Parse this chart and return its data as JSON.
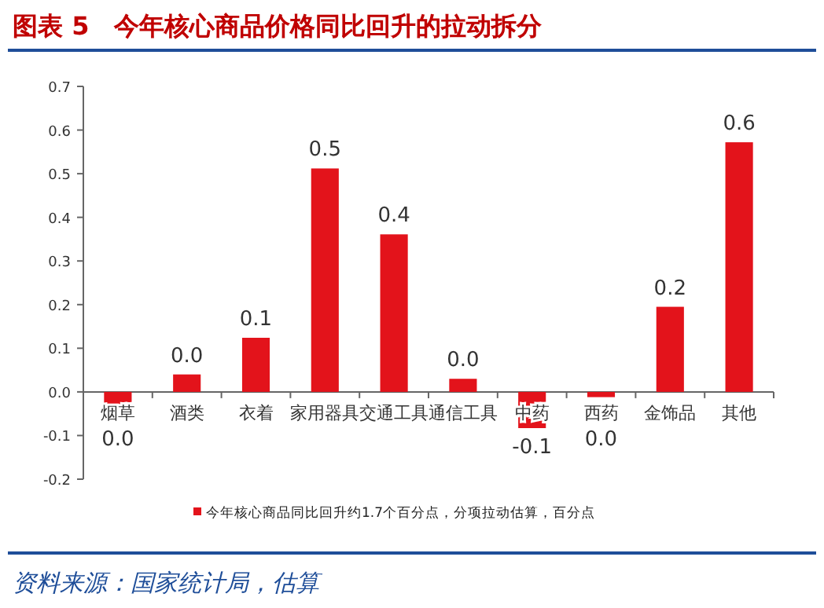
{
  "chart_data": {
    "type": "bar",
    "title": "图表 5　今年核心商品价格同比回升的拉动拆分",
    "categories": [
      "烟草",
      "酒类",
      "衣着",
      "家用器具",
      "交通工具",
      "通信工具",
      "中药",
      "西药",
      "金饰品",
      "其他"
    ],
    "series": [
      {
        "name": "今年核心商品同比回升约1.7个百分点，分项拉动估算，百分点",
        "color": "#e3131b",
        "values": [
          -0.029,
          0.04,
          0.124,
          0.512,
          0.361,
          0.03,
          -0.083,
          -0.012,
          0.195,
          0.572
        ],
        "value_labels": [
          "0.0",
          "0.0",
          "0.1",
          "0.5",
          "0.4",
          "0.0",
          "-0.1",
          "0.0",
          "0.2",
          "0.6"
        ]
      }
    ],
    "ylim": [
      -0.2,
      0.7
    ],
    "yticks": [
      {
        "value": -0.2,
        "label": "-0.2"
      },
      {
        "value": -0.1,
        "label": "-0.1"
      },
      {
        "value": 0,
        "label": "0.0"
      },
      {
        "value": 0.1,
        "label": "0.1"
      },
      {
        "value": 0.2,
        "label": "0.2"
      },
      {
        "value": 0.3,
        "label": "0.3"
      },
      {
        "value": 0.4,
        "label": "0.4"
      },
      {
        "value": 0.5,
        "label": "0.5"
      },
      {
        "value": 0.6,
        "label": "0.6"
      },
      {
        "value": 0.7,
        "label": "0.7"
      }
    ],
    "legend": "bottom",
    "grid": false,
    "annotations": [
      "资料来源：国家统计局，估算"
    ]
  }
}
